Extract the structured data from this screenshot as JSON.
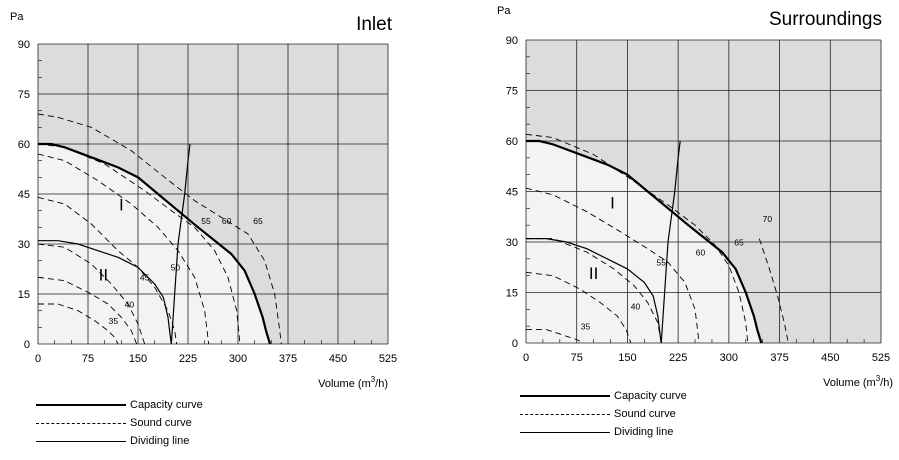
{
  "chart_data": [
    {
      "type": "line",
      "title": "Inlet",
      "ylabel": "Pa",
      "xlabel": "Volume (m³/h)",
      "xlabel_main": "Volume (m",
      "xlabel_sup": "3",
      "xlabel_tail": "/h)",
      "xlim": [
        0,
        525
      ],
      "ylim": [
        0,
        90
      ],
      "xticks": [
        "0",
        "75",
        "150",
        "225",
        "300",
        "375",
        "450",
        "525"
      ],
      "yticks": [
        "0",
        "15",
        "30",
        "45",
        "60",
        "75",
        "90"
      ],
      "region_labels": [
        {
          "text": "I",
          "x": 125,
          "y": 40
        },
        {
          "text": "II",
          "x": 98,
          "y": 19
        }
      ],
      "series": [
        {
          "name": "Capacity curve",
          "style": "capacity",
          "points": [
            [
              0,
              60
            ],
            [
              20,
              60
            ],
            [
              40,
              59
            ],
            [
              80,
              56
            ],
            [
              120,
              53
            ],
            [
              150,
              50
            ],
            [
              180,
              45
            ],
            [
              210,
              40
            ],
            [
              240,
              35
            ],
            [
              265,
              31
            ],
            [
              290,
              27
            ],
            [
              310,
              22
            ],
            [
              325,
              15
            ],
            [
              337,
              8
            ],
            [
              342,
              4
            ],
            [
              348,
              0
            ]
          ]
        },
        {
          "name": "Dividing line",
          "style": "divider",
          "points": [
            [
              0,
              31
            ],
            [
              30,
              31
            ],
            [
              60,
              30
            ],
            [
              90,
              28
            ],
            [
              120,
              26
            ],
            [
              150,
              23
            ],
            [
              175,
              18
            ],
            [
              188,
              14
            ],
            [
              195,
              8
            ],
            [
              198,
              3
            ],
            [
              200,
              0
            ]
          ]
        },
        {
          "name": "Dividing line",
          "style": "divider",
          "points": [
            [
              200,
              0
            ],
            [
              205,
              15
            ],
            [
              210,
              30
            ],
            [
              220,
              45
            ],
            [
              225,
              55
            ],
            [
              228,
              60
            ]
          ]
        },
        {
          "label": "35",
          "style": "sound",
          "points": [
            [
              0,
              12
            ],
            [
              30,
              12
            ],
            [
              60,
              10
            ],
            [
              85,
              7
            ],
            [
              105,
              4
            ],
            [
              115,
              2
            ],
            [
              120,
              0
            ]
          ]
        },
        {
          "label": "40",
          "style": "sound",
          "points": [
            [
              0,
              20
            ],
            [
              40,
              19
            ],
            [
              80,
              15
            ],
            [
              105,
              12
            ],
            [
              125,
              8
            ],
            [
              140,
              4
            ],
            [
              148,
              0
            ]
          ]
        },
        {
          "label": "45",
          "style": "sound",
          "points": [
            [
              0,
              30
            ],
            [
              40,
              29
            ],
            [
              80,
              24
            ],
            [
              110,
              18
            ],
            [
              135,
              12
            ],
            [
              150,
              6
            ],
            [
              160,
              0
            ]
          ]
        },
        {
          "label": "50",
          "style": "sound",
          "points": [
            [
              0,
              44
            ],
            [
              40,
              42
            ],
            [
              80,
              36
            ],
            [
              120,
              28
            ],
            [
              150,
              23
            ],
            [
              175,
              17
            ],
            [
              195,
              10
            ],
            [
              205,
              4
            ],
            [
              208,
              0
            ]
          ]
        },
        {
          "label": "55",
          "style": "sound",
          "points": [
            [
              0,
              57
            ],
            [
              40,
              55
            ],
            [
              90,
              49
            ],
            [
              140,
              42
            ],
            [
              180,
              35
            ],
            [
              210,
              28
            ],
            [
              235,
              20
            ],
            [
              250,
              10
            ],
            [
              256,
              0
            ]
          ]
        },
        {
          "label": "60",
          "style": "sound",
          "points": [
            [
              0,
              60
            ],
            [
              40,
              59
            ],
            [
              100,
              54
            ],
            [
              160,
              46
            ],
            [
              200,
              40
            ],
            [
              235,
              35
            ],
            [
              265,
              28
            ],
            [
              285,
              20
            ],
            [
              298,
              10
            ],
            [
              303,
              0
            ]
          ]
        },
        {
          "label": "65",
          "style": "sound",
          "points": [
            [
              0,
              69
            ],
            [
              30,
              68
            ],
            [
              80,
              65
            ],
            [
              140,
              58
            ],
            [
              190,
              50
            ],
            [
              235,
              43
            ],
            [
              275,
              38
            ],
            [
              315,
              33
            ],
            [
              340,
              25
            ],
            [
              355,
              15
            ],
            [
              362,
              5
            ],
            [
              365,
              0
            ]
          ]
        }
      ],
      "curve_labels": [
        {
          "text": "35",
          "x": 113,
          "y": 6
        },
        {
          "text": "40",
          "x": 137,
          "y": 11
        },
        {
          "text": "45",
          "x": 160,
          "y": 19
        },
        {
          "text": "50",
          "x": 206,
          "y": 22
        },
        {
          "text": "55",
          "x": 252,
          "y": 36
        },
        {
          "text": "60",
          "x": 283,
          "y": 36
        },
        {
          "text": "65",
          "x": 330,
          "y": 36
        }
      ]
    },
    {
      "type": "line",
      "title": "Surroundings",
      "ylabel": "Pa",
      "xlabel": "Volume (m³/h)",
      "xlabel_main": "Volume (m",
      "xlabel_sup": "3",
      "xlabel_tail": "/h)",
      "xlim": [
        0,
        525
      ],
      "ylim": [
        0,
        90
      ],
      "xticks": [
        "0",
        "75",
        "150",
        "225",
        "300",
        "375",
        "450",
        "525"
      ],
      "yticks": [
        "0",
        "15",
        "30",
        "45",
        "60",
        "75",
        "90"
      ],
      "region_labels": [
        {
          "text": "I",
          "x": 128,
          "y": 40
        },
        {
          "text": "II",
          "x": 100,
          "y": 19
        }
      ],
      "series": [
        {
          "name": "Capacity curve",
          "style": "capacity",
          "points": [
            [
              0,
              60
            ],
            [
              20,
              60
            ],
            [
              40,
              59
            ],
            [
              80,
              56
            ],
            [
              120,
              53
            ],
            [
              150,
              50
            ],
            [
              180,
              45
            ],
            [
              210,
              40
            ],
            [
              240,
              35
            ],
            [
              265,
              31
            ],
            [
              290,
              27
            ],
            [
              310,
              22
            ],
            [
              325,
              15
            ],
            [
              337,
              8
            ],
            [
              342,
              4
            ],
            [
              348,
              0
            ]
          ]
        },
        {
          "name": "Dividing line",
          "style": "divider",
          "points": [
            [
              0,
              31
            ],
            [
              30,
              31
            ],
            [
              60,
              30
            ],
            [
              90,
              28
            ],
            [
              120,
              25
            ],
            [
              150,
              22
            ],
            [
              175,
              18
            ],
            [
              188,
              14
            ],
            [
              195,
              8
            ],
            [
              198,
              3
            ],
            [
              200,
              0
            ]
          ]
        },
        {
          "name": "Dividing line",
          "style": "divider",
          "points": [
            [
              200,
              0
            ],
            [
              205,
              15
            ],
            [
              210,
              30
            ],
            [
              220,
              45
            ],
            [
              225,
              55
            ],
            [
              228,
              60
            ]
          ]
        },
        {
          "label": "35",
          "style": "sound",
          "points": [
            [
              0,
              4
            ],
            [
              30,
              4
            ],
            [
              60,
              2
            ],
            [
              75,
              1
            ],
            [
              85,
              0
            ]
          ]
        },
        {
          "label": "40",
          "style": "sound",
          "points": [
            [
              0,
              21
            ],
            [
              40,
              20
            ],
            [
              80,
              16
            ],
            [
              110,
              12
            ],
            [
              135,
              8
            ],
            [
              148,
              4
            ],
            [
              155,
              0
            ]
          ]
        },
        {
          "label": "55",
          "style": "sound",
          "points": [
            [
              0,
              31
            ],
            [
              40,
              31
            ],
            [
              90,
              27
            ],
            [
              130,
              22
            ],
            [
              160,
              17
            ],
            [
              180,
              12
            ],
            [
              195,
              6
            ],
            [
              200,
              0
            ]
          ]
        },
        {
          "label": "60",
          "style": "sound",
          "points": [
            [
              0,
              46
            ],
            [
              40,
              44
            ],
            [
              90,
              39
            ],
            [
              140,
              33
            ],
            [
              180,
              28
            ],
            [
              210,
              24
            ],
            [
              235,
              18
            ],
            [
              250,
              10
            ],
            [
              256,
              0
            ]
          ]
        },
        {
          "label": "65",
          "style": "sound",
          "points": [
            [
              0,
              62
            ],
            [
              40,
              61
            ],
            [
              100,
              56
            ],
            [
              160,
              48
            ],
            [
              210,
              41
            ],
            [
              250,
              35
            ],
            [
              280,
              29
            ],
            [
              300,
              23
            ],
            [
              315,
              15
            ],
            [
              325,
              6
            ],
            [
              328,
              0
            ]
          ]
        },
        {
          "label": "70",
          "style": "sound",
          "points": [
            [
              345,
              31
            ],
            [
              360,
              22
            ],
            [
              372,
              14
            ],
            [
              382,
              6
            ],
            [
              388,
              0
            ]
          ]
        }
      ],
      "curve_labels": [
        {
          "text": "35",
          "x": 88,
          "y": 4
        },
        {
          "text": "40",
          "x": 162,
          "y": 10
        },
        {
          "text": "55",
          "x": 200,
          "y": 23
        },
        {
          "text": "60",
          "x": 258,
          "y": 26
        },
        {
          "text": "65",
          "x": 315,
          "y": 29
        },
        {
          "text": "70",
          "x": 357,
          "y": 36
        }
      ]
    }
  ],
  "legend": [
    {
      "label": "Capacity curve",
      "style": "capacity"
    },
    {
      "label": "Sound curve",
      "style": "sound"
    },
    {
      "label": "Dividing line",
      "style": "divider"
    }
  ]
}
